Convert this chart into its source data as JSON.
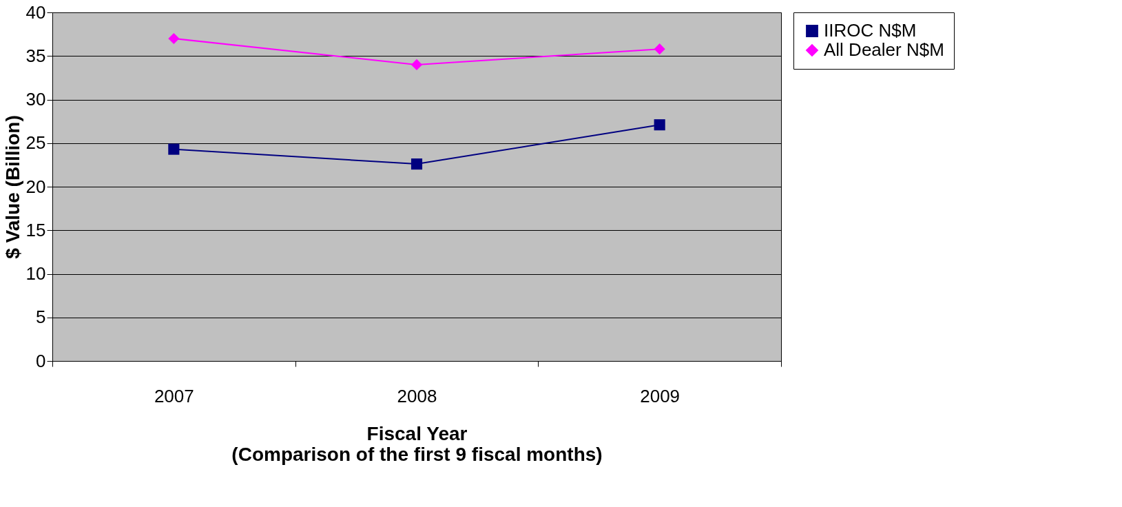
{
  "chart_data": {
    "type": "line",
    "xlabel": "Fiscal Year\n(Comparison of the first 9 fiscal months)",
    "ylabel": "$ Value (Billion)",
    "categories": [
      "2007",
      "2008",
      "2009"
    ],
    "series": [
      {
        "name": "IIROC N$M",
        "color": "#000080",
        "marker": "square",
        "values": [
          24.3,
          22.6,
          27.1
        ]
      },
      {
        "name": "All Dealer N$M",
        "color": "#ff00ff",
        "marker": "diamond",
        "values": [
          37.0,
          34.0,
          35.8
        ]
      }
    ],
    "ylim": [
      0,
      40
    ],
    "yticks": [
      0,
      5,
      10,
      15,
      20,
      25,
      30,
      35,
      40
    ],
    "grid": "y",
    "legend": "right",
    "line_style": "solid"
  }
}
